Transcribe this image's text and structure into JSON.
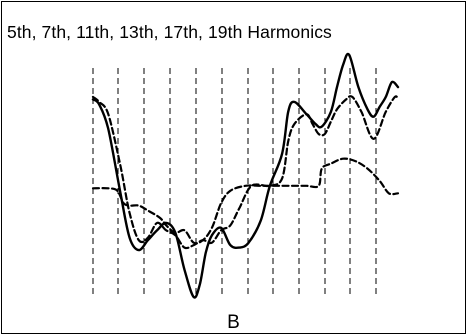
{
  "figure": {
    "title": "5th, 7th, 11th, 13th, 17th, 19th Harmonics",
    "caption": "B",
    "line_color": "#000000"
  },
  "waveforms": [
    {
      "style": "solid",
      "points": [
        [
          0,
          0.8
        ],
        [
          2,
          0.78
        ],
        [
          5,
          0.68
        ],
        [
          9,
          0.42
        ],
        [
          12,
          0.24
        ],
        [
          15,
          0.19
        ],
        [
          18,
          0.23
        ],
        [
          21,
          0.27
        ],
        [
          24,
          0.3
        ],
        [
          27,
          0.26
        ],
        [
          30,
          0.11
        ],
        [
          33,
          0.0
        ],
        [
          35,
          0.05
        ],
        [
          37,
          0.18
        ],
        [
          39,
          0.25
        ],
        [
          42,
          0.28
        ],
        [
          45,
          0.21
        ],
        [
          48,
          0.2
        ],
        [
          51,
          0.22
        ],
        [
          55,
          0.31
        ],
        [
          58,
          0.45
        ],
        [
          62,
          0.58
        ],
        [
          64,
          0.75
        ],
        [
          66,
          0.79
        ],
        [
          70,
          0.74
        ],
        [
          73,
          0.7
        ],
        [
          75,
          0.69
        ],
        [
          78,
          0.75
        ],
        [
          80,
          0.85
        ],
        [
          82,
          0.94
        ],
        [
          84,
          0.98
        ],
        [
          87,
          0.85
        ],
        [
          90,
          0.76
        ],
        [
          92,
          0.73
        ],
        [
          94,
          0.77
        ],
        [
          96,
          0.81
        ],
        [
          98,
          0.87
        ],
        [
          100,
          0.85
        ]
      ]
    },
    {
      "style": "dashed",
      "points": [
        [
          0,
          0.81
        ],
        [
          2,
          0.79
        ],
        [
          5,
          0.74
        ],
        [
          9,
          0.53
        ],
        [
          12,
          0.34
        ],
        [
          15,
          0.23
        ],
        [
          18,
          0.24
        ],
        [
          21,
          0.3
        ],
        [
          24,
          0.27
        ],
        [
          27,
          0.25
        ],
        [
          30,
          0.2
        ],
        [
          33,
          0.21
        ],
        [
          36,
          0.23
        ],
        [
          39,
          0.22
        ],
        [
          42,
          0.27
        ],
        [
          45,
          0.29
        ],
        [
          48,
          0.36
        ],
        [
          52,
          0.45
        ],
        [
          58,
          0.45
        ],
        [
          62,
          0.48
        ],
        [
          64,
          0.63
        ],
        [
          66,
          0.7
        ],
        [
          70,
          0.74
        ],
        [
          72,
          0.7
        ],
        [
          74,
          0.66
        ],
        [
          76,
          0.66
        ],
        [
          78,
          0.71
        ],
        [
          80,
          0.76
        ],
        [
          83,
          0.8
        ],
        [
          85,
          0.81
        ],
        [
          88,
          0.75
        ],
        [
          92,
          0.64
        ],
        [
          96,
          0.75
        ],
        [
          99,
          0.81
        ],
        [
          100,
          0.8
        ]
      ]
    },
    {
      "style": "dashed",
      "points": [
        [
          0,
          0.44
        ],
        [
          5,
          0.44
        ],
        [
          8,
          0.43
        ],
        [
          10,
          0.38
        ],
        [
          12,
          0.37
        ],
        [
          15,
          0.37
        ],
        [
          18,
          0.35
        ],
        [
          22,
          0.32
        ],
        [
          24,
          0.29
        ],
        [
          27,
          0.26
        ],
        [
          30,
          0.27
        ],
        [
          33,
          0.22
        ],
        [
          36,
          0.23
        ],
        [
          39,
          0.28
        ],
        [
          42,
          0.38
        ],
        [
          45,
          0.43
        ],
        [
          50,
          0.45
        ],
        [
          55,
          0.45
        ],
        [
          58,
          0.45
        ],
        [
          62,
          0.45
        ],
        [
          66,
          0.45
        ],
        [
          70,
          0.45
        ],
        [
          74,
          0.45
        ],
        [
          75,
          0.52
        ],
        [
          78,
          0.54
        ],
        [
          82,
          0.56
        ],
        [
          86,
          0.55
        ],
        [
          90,
          0.52
        ],
        [
          94,
          0.47
        ],
        [
          97,
          0.42
        ],
        [
          100,
          0.42
        ]
      ]
    }
  ]
}
